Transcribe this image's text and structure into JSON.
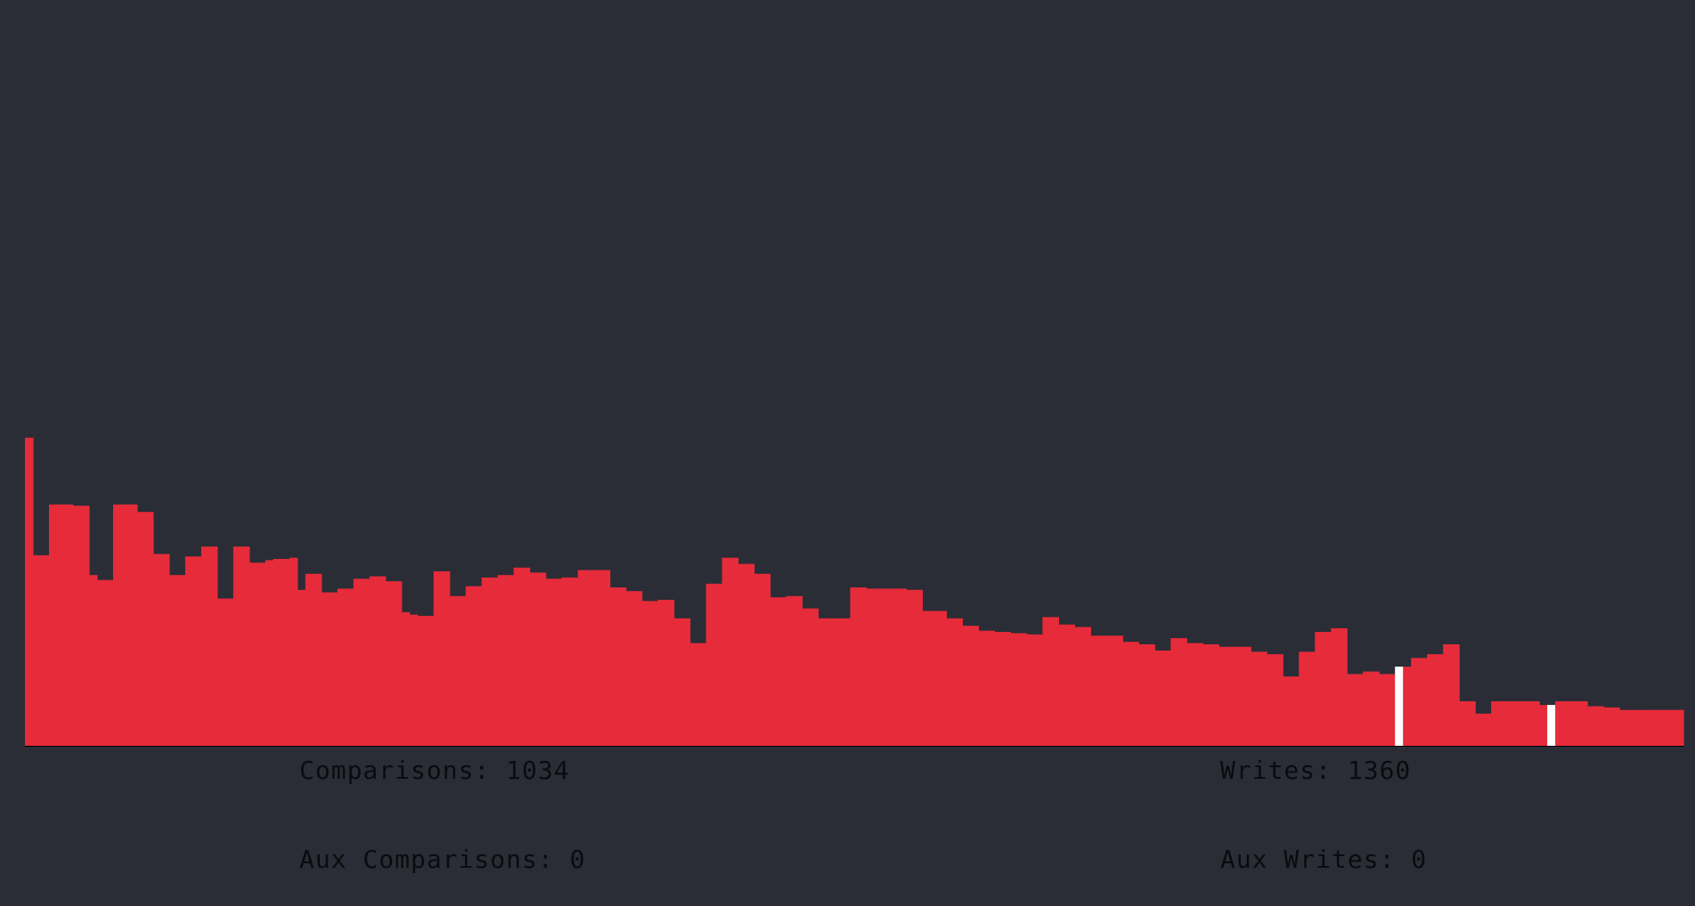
{
  "colors": {
    "background": "#2a2d35",
    "bar": "#e62b3a",
    "highlight": "#ffffff",
    "text": "#0b0b0f"
  },
  "stats": {
    "comparisons_label": "Comparisons: ",
    "comparisons_value": "1034",
    "writes_label": "Writes: ",
    "writes_value": "1360",
    "aux_comparisons_label": "Aux Comparisons: ",
    "aux_comparisons_value": "0",
    "aux_writes_label": "Aux Writes: ",
    "aux_writes_value": "0"
  },
  "array": {
    "max_value": 502,
    "highlighted_indices": [
      171,
      190
    ],
    "values": [
      249,
      154,
      154,
      195,
      195,
      195,
      194,
      194,
      138,
      134,
      134,
      195,
      195,
      195,
      189,
      189,
      155,
      155,
      138,
      138,
      153,
      153,
      161,
      161,
      119,
      119,
      161,
      161,
      148,
      148,
      150,
      151,
      151,
      152,
      126,
      139,
      139,
      124,
      124,
      127,
      127,
      135,
      135,
      137,
      137,
      133,
      133,
      108,
      106,
      105,
      105,
      141,
      141,
      121,
      121,
      129,
      129,
      136,
      136,
      138,
      138,
      144,
      144,
      140,
      140,
      135,
      135,
      136,
      136,
      142,
      142,
      142,
      142,
      128,
      128,
      125,
      125,
      117,
      117,
      118,
      118,
      103,
      103,
      83,
      83,
      131,
      131,
      152,
      152,
      147,
      147,
      139,
      139,
      120,
      120,
      121,
      121,
      111,
      111,
      103,
      103,
      103,
      103,
      128,
      128,
      127,
      127,
      127,
      127,
      127,
      126,
      126,
      109,
      109,
      109,
      103,
      103,
      97,
      97,
      93,
      93,
      92,
      92,
      91,
      91,
      90,
      90,
      104,
      104,
      98,
      98,
      96,
      96,
      89,
      89,
      89,
      89,
      84,
      84,
      82,
      82,
      77,
      77,
      87,
      87,
      83,
      83,
      82,
      82,
      80,
      80,
      80,
      80,
      76,
      76,
      74,
      74,
      56,
      56,
      76,
      76,
      92,
      92,
      95,
      95,
      58,
      58,
      60,
      60,
      58,
      58,
      64,
      64,
      71,
      71,
      74,
      74,
      82,
      82,
      36,
      36,
      26,
      26,
      36,
      36,
      36,
      36,
      36,
      36,
      33,
      33,
      36,
      36,
      36,
      36,
      32,
      32,
      31,
      31,
      29,
      29,
      29,
      29,
      29,
      29,
      29,
      29
    ]
  }
}
